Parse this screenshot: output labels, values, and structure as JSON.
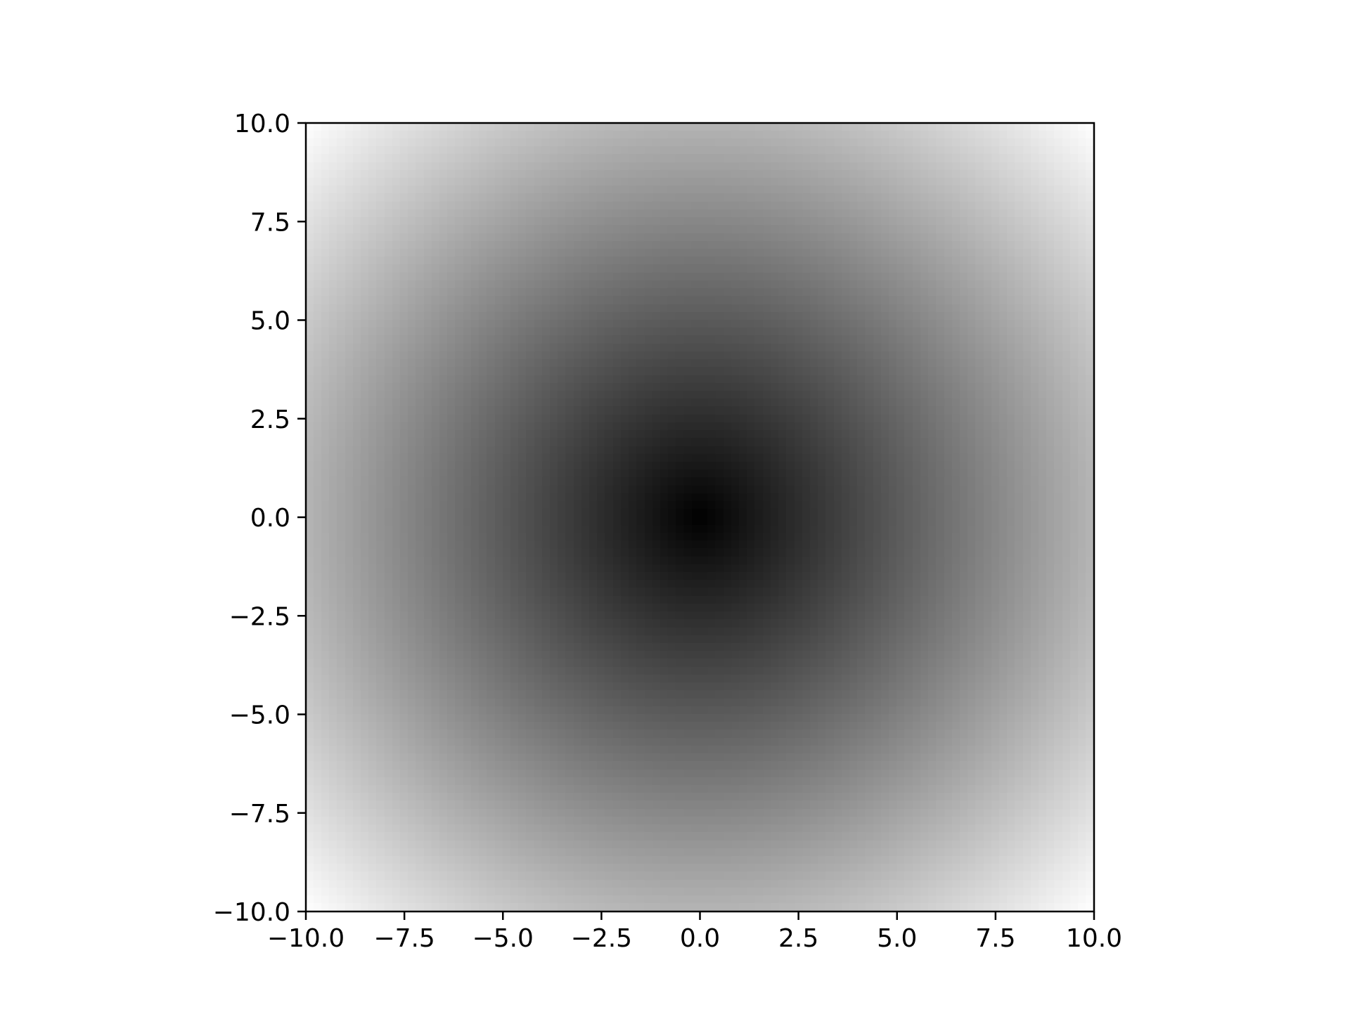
{
  "chart_data": {
    "type": "heatmap",
    "title": "",
    "xlabel": "",
    "ylabel": "",
    "xlim": [
      -10.0,
      10.0
    ],
    "ylim": [
      -10.0,
      10.0
    ],
    "grid": false,
    "legend": "none",
    "colormap": "gray",
    "colormap_colors": [
      "#000000",
      "#ffffff"
    ],
    "function": "sqrt(x^2 + y^2)",
    "value_range": [
      0.0,
      14.14
    ],
    "grid_resolution": 100,
    "x_ticks": [
      -10.0,
      -7.5,
      -5.0,
      -2.5,
      0.0,
      2.5,
      5.0,
      7.5,
      10.0
    ],
    "y_ticks": [
      10.0,
      7.5,
      5.0,
      2.5,
      0.0,
      -2.5,
      -5.0,
      -7.5,
      -10.0
    ],
    "x_tick_labels": [
      "−10.0",
      "−7.5",
      "−5.0",
      "−2.5",
      "0.0",
      "2.5",
      "5.0",
      "7.5",
      "10.0"
    ],
    "y_tick_labels": [
      "10.0",
      "7.5",
      "5.0",
      "2.5",
      "0.0",
      "−2.5",
      "−5.0",
      "−7.5",
      "−10.0"
    ]
  }
}
